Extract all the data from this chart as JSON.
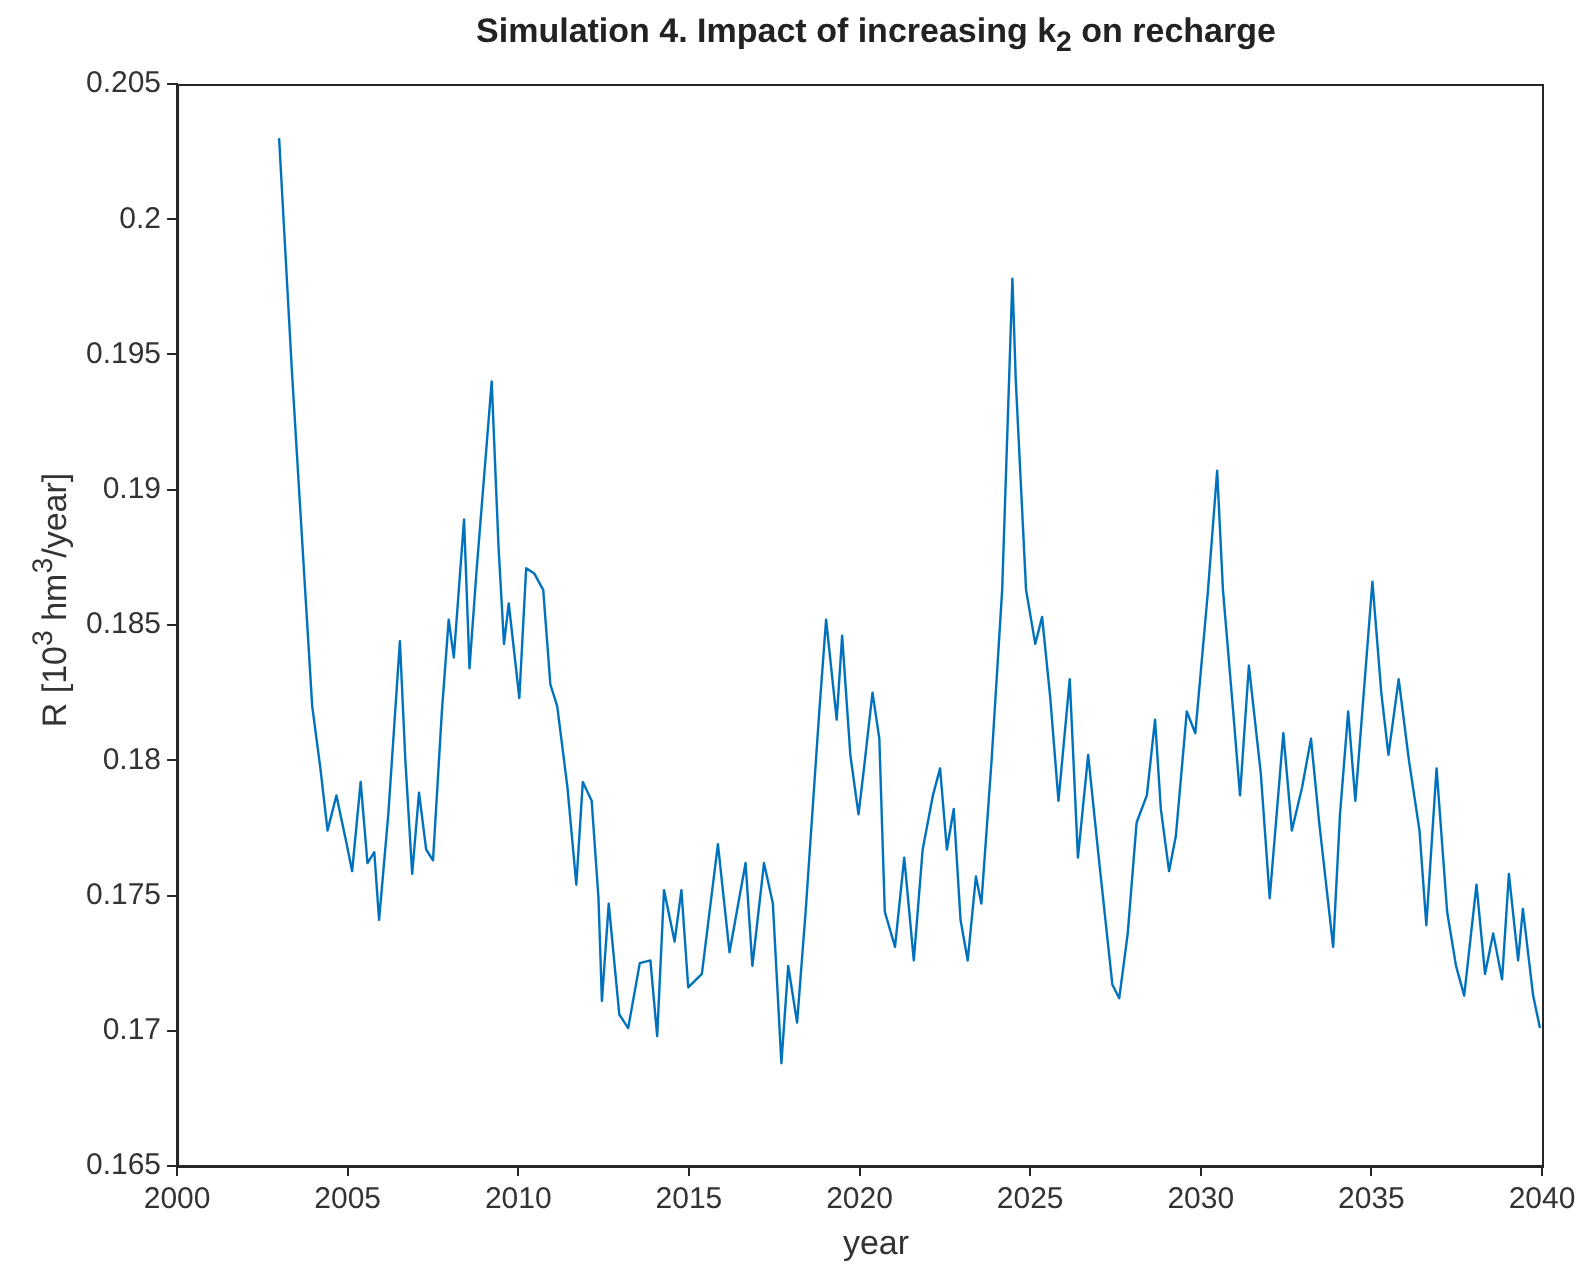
{
  "chart_data": {
    "type": "line",
    "title": "Simulation 4. Impact of increasing k$_{2}$ on recharge",
    "xlabel": "year",
    "ylabel": "R [10$^{3}$ hm$^{3}$/year]",
    "xlim": [
      2000,
      2040
    ],
    "xticks": [
      2000,
      2005,
      2010,
      2015,
      2020,
      2025,
      2030,
      2035,
      2040
    ],
    "ylim": [
      0.165,
      0.205
    ],
    "yticks": [
      0.165,
      0.17,
      0.175,
      0.18,
      0.185,
      0.19,
      0.195,
      0.2,
      0.205
    ],
    "grid": false,
    "series": [
      {
        "color": "#0072bd",
        "x": [
          2002.99,
          2003.36,
          2003.7,
          2003.96,
          2004.2,
          2004.41,
          2004.67,
          2004.97,
          2005.13,
          2005.38,
          2005.58,
          2005.78,
          2005.92,
          2006.19,
          2006.53,
          2006.69,
          2006.89,
          2007.09,
          2007.3,
          2007.5,
          2007.76,
          2007.96,
          2008.11,
          2008.41,
          2008.57,
          2008.77,
          2009.22,
          2009.42,
          2009.58,
          2009.72,
          2010.03,
          2010.23,
          2010.47,
          2010.73,
          2010.94,
          2011.14,
          2011.44,
          2011.7,
          2011.89,
          2012.15,
          2012.35,
          2012.45,
          2012.65,
          2012.96,
          2013.22,
          2013.56,
          2013.87,
          2014.07,
          2014.27,
          2014.58,
          2014.78,
          2014.98,
          2015.38,
          2015.85,
          2016.19,
          2016.66,
          2016.86,
          2017.2,
          2017.46,
          2017.71,
          2017.91,
          2018.17,
          2018.42,
          2018.82,
          2019.02,
          2019.33,
          2019.49,
          2019.73,
          2019.97,
          2020.13,
          2020.38,
          2020.58,
          2020.74,
          2021.04,
          2021.31,
          2021.59,
          2021.85,
          2022.15,
          2022.36,
          2022.56,
          2022.76,
          2022.96,
          2023.17,
          2023.41,
          2023.57,
          2023.87,
          2024.18,
          2024.48,
          2024.58,
          2024.88,
          2025.15,
          2025.35,
          2025.59,
          2025.83,
          2026.16,
          2026.4,
          2026.7,
          2027.01,
          2027.41,
          2027.61,
          2027.86,
          2028.12,
          2028.42,
          2028.66,
          2028.83,
          2029.07,
          2029.27,
          2029.59,
          2029.84,
          2030.2,
          2030.48,
          2030.65,
          2030.95,
          2031.15,
          2031.41,
          2031.76,
          2032.02,
          2032.42,
          2032.67,
          2032.97,
          2033.23,
          2033.47,
          2033.88,
          2034.08,
          2034.32,
          2034.53,
          2035.03,
          2035.29,
          2035.5,
          2035.8,
          2036.1,
          2036.41,
          2036.61,
          2036.91,
          2037.22,
          2037.48,
          2037.72,
          2038.08,
          2038.33,
          2038.57,
          2038.83,
          2039.03,
          2039.3,
          2039.44,
          2039.74,
          2039.94
        ],
        "values": [
          0.203,
          0.1945,
          0.1874,
          0.182,
          0.1797,
          0.1774,
          0.1787,
          0.1769,
          0.1759,
          0.1792,
          0.1762,
          0.1766,
          0.1741,
          0.178,
          0.1844,
          0.18,
          0.1758,
          0.1788,
          0.1767,
          0.1763,
          0.1818,
          0.1852,
          0.1838,
          0.1889,
          0.1834,
          0.1869,
          0.194,
          0.1879,
          0.1843,
          0.1858,
          0.1823,
          0.1871,
          0.1869,
          0.1863,
          0.1828,
          0.182,
          0.179,
          0.1754,
          0.1792,
          0.1785,
          0.1749,
          0.1711,
          0.1747,
          0.1706,
          0.1701,
          0.1725,
          0.1726,
          0.1698,
          0.1752,
          0.1733,
          0.1752,
          0.1716,
          0.1721,
          0.1769,
          0.1729,
          0.1762,
          0.1724,
          0.1762,
          0.1747,
          0.1688,
          0.1724,
          0.1703,
          0.1744,
          0.1818,
          0.1852,
          0.1815,
          0.1846,
          0.1802,
          0.178,
          0.1797,
          0.1825,
          0.1808,
          0.1744,
          0.1731,
          0.1764,
          0.1726,
          0.1767,
          0.1787,
          0.1797,
          0.1767,
          0.1782,
          0.1741,
          0.1726,
          0.1757,
          0.1747,
          0.18,
          0.1863,
          0.1978,
          0.194,
          0.1863,
          0.1843,
          0.1853,
          0.1823,
          0.1785,
          0.183,
          0.1764,
          0.1802,
          0.1764,
          0.1717,
          0.1712,
          0.1736,
          0.1777,
          0.1787,
          0.1815,
          0.1782,
          0.1759,
          0.1772,
          0.1818,
          0.181,
          0.1861,
          0.1907,
          0.1863,
          0.1818,
          0.1787,
          0.1835,
          0.1795,
          0.1749,
          0.181,
          0.1774,
          0.179,
          0.1808,
          0.1777,
          0.1731,
          0.178,
          0.1818,
          0.1785,
          0.1866,
          0.1825,
          0.1802,
          0.183,
          0.18,
          0.1774,
          0.1739,
          0.1797,
          0.1744,
          0.1724,
          0.1713,
          0.1754,
          0.1721,
          0.1736,
          0.1719,
          0.1758,
          0.1726,
          0.1745,
          0.1713,
          0.1701
        ]
      }
    ]
  }
}
